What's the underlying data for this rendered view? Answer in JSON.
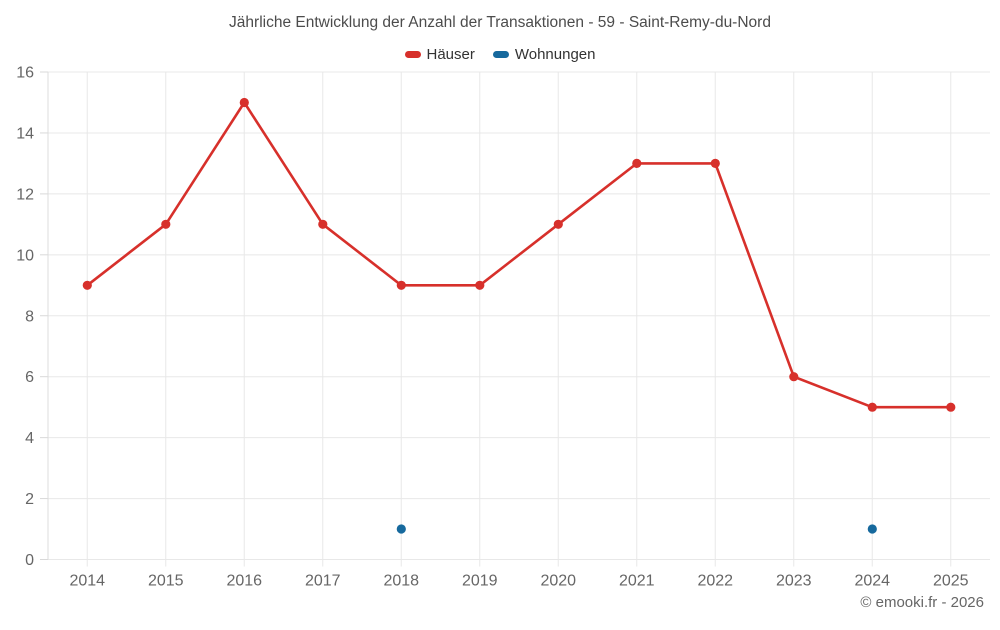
{
  "header": {
    "title": "Jährliche Entwicklung der Anzahl der Transaktionen - 59 - Saint-Remy-du-Nord"
  },
  "footer": {
    "copyright": "© emooki.fr - 2026"
  },
  "colors": {
    "haeuser": "#d7302b",
    "wohnungen": "#16699d",
    "grid": "#e8e8e8",
    "axis_line": "#dcdcdc",
    "tick": "#d9d9d9",
    "axis_label": "#666666",
    "title_text": "#4c4c4c",
    "legend_text": "#333333"
  },
  "chart_data": {
    "type": "line",
    "title": "Jährliche Entwicklung der Anzahl der Transaktionen - 59 - Saint-Remy-du-Nord",
    "categories": [
      "2014",
      "2015",
      "2016",
      "2017",
      "2018",
      "2019",
      "2020",
      "2021",
      "2022",
      "2023",
      "2024",
      "2025"
    ],
    "series": [
      {
        "name": "Häuser",
        "color": "#d7302b",
        "values": [
          9,
          11,
          15,
          11,
          9,
          9,
          11,
          13,
          13,
          6,
          5,
          5
        ]
      },
      {
        "name": "Wohnungen",
        "color": "#16699d",
        "values": [
          null,
          null,
          null,
          null,
          1,
          null,
          null,
          null,
          null,
          null,
          1,
          null
        ]
      }
    ],
    "xlabel": "",
    "ylabel": "",
    "ylim": [
      0,
      16
    ],
    "ytick_step": 2,
    "grid": true,
    "legend_position": "top"
  }
}
